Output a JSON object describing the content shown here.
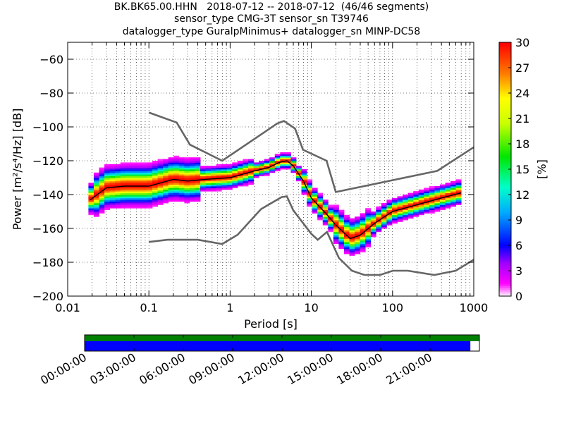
{
  "chart_data": {
    "type": "heatmap",
    "title_lines": [
      "BK.BK65.00.HHN   2018-07-12 -- 2018-07-12  (46/46 segments)",
      "sensor_type CMG-3T sensor_sn T39746",
      "datalogger_type GuralpMinimus+ datalogger_sn MINP-DC58"
    ],
    "xlabel": "Period [s]",
    "ylabel": "Power [m²/s⁴/Hz] [dB]",
    "xscale": "log",
    "xlim": [
      0.01,
      1000
    ],
    "ylim": [
      -200,
      -50
    ],
    "xtick_labels": [
      "0.01",
      "0.1",
      "1",
      "10",
      "100",
      "1000"
    ],
    "xtick_values": [
      0.01,
      0.1,
      1,
      10,
      100,
      1000
    ],
    "ytick_labels": [
      "−200",
      "−180",
      "−160",
      "−140",
      "−120",
      "−100",
      "−80",
      "−60"
    ],
    "ytick_values": [
      -200,
      -180,
      -160,
      -140,
      -120,
      -100,
      -80,
      -60
    ],
    "grid": true,
    "colorbar": {
      "label": "[%]",
      "range": [
        0,
        30
      ],
      "tick_labels": [
        "0",
        "3",
        "6",
        "9",
        "12",
        "15",
        "18",
        "21",
        "24",
        "27",
        "30"
      ],
      "tick_values": [
        0,
        3,
        6,
        9,
        12,
        15,
        18,
        21,
        24,
        27,
        30
      ]
    },
    "series": [
      {
        "name": "",
        "role": "noise model high",
        "color": "#666666",
        "x": [
          0.1,
          0.22,
          0.32,
          0.8,
          3.8,
          4.6,
          6.3,
          7.9,
          15.4,
          20,
          354.8,
          1000
        ],
        "y": [
          -91.5,
          -97.4,
          -110.5,
          -120,
          -98,
          -96.5,
          -101,
          -113.5,
          -120,
          -138.5,
          -126,
          -112
        ]
      },
      {
        "name": "",
        "role": "noise model low",
        "color": "#666666",
        "x": [
          0.1,
          0.17,
          0.4,
          0.8,
          1.24,
          2.4,
          4.3,
          5,
          6,
          10,
          12,
          15.6,
          21.9,
          31.6,
          45,
          70,
          101,
          154,
          328,
          600,
          1000
        ],
        "y": [
          -168,
          -166.7,
          -166.7,
          -169.2,
          -163.7,
          -148.6,
          -141.5,
          -141.1,
          -149.3,
          -163.2,
          -166.7,
          -162.1,
          -177.5,
          -185,
          -187.5,
          -187.5,
          -185,
          -185,
          -187.5,
          -185,
          -178.5
        ]
      },
      {
        "name": "",
        "role": "mean psd",
        "color": "#000000",
        "x": [
          0.019,
          0.03,
          0.05,
          0.1,
          0.2,
          0.3,
          0.5,
          1,
          2,
          3,
          4,
          5,
          6,
          8,
          10,
          15,
          20,
          30,
          40,
          60,
          100,
          200,
          400,
          700
        ],
        "y": [
          -143,
          -136,
          -135,
          -135,
          -131,
          -132,
          -131,
          -130,
          -126,
          -124,
          -121,
          -120,
          -123,
          -132,
          -142,
          -151,
          -158,
          -166,
          -164,
          -157,
          -150,
          -146,
          -142,
          -139
        ]
      }
    ]
  },
  "timeline": {
    "tick_labels": [
      "00:00:00",
      "03:00:00",
      "06:00:00",
      "09:00:00",
      "12:00:00",
      "15:00:00",
      "18:00:00",
      "21:00:00"
    ],
    "tick_hours": [
      0,
      3,
      6,
      9,
      12,
      15,
      18,
      21
    ],
    "range_hours": [
      0,
      24
    ],
    "top_bar": {
      "color": "#008000",
      "coverage": [
        0,
        24
      ]
    },
    "bottom_bar": {
      "color": "#0000ff",
      "coverage": [
        0,
        23.45
      ]
    }
  }
}
